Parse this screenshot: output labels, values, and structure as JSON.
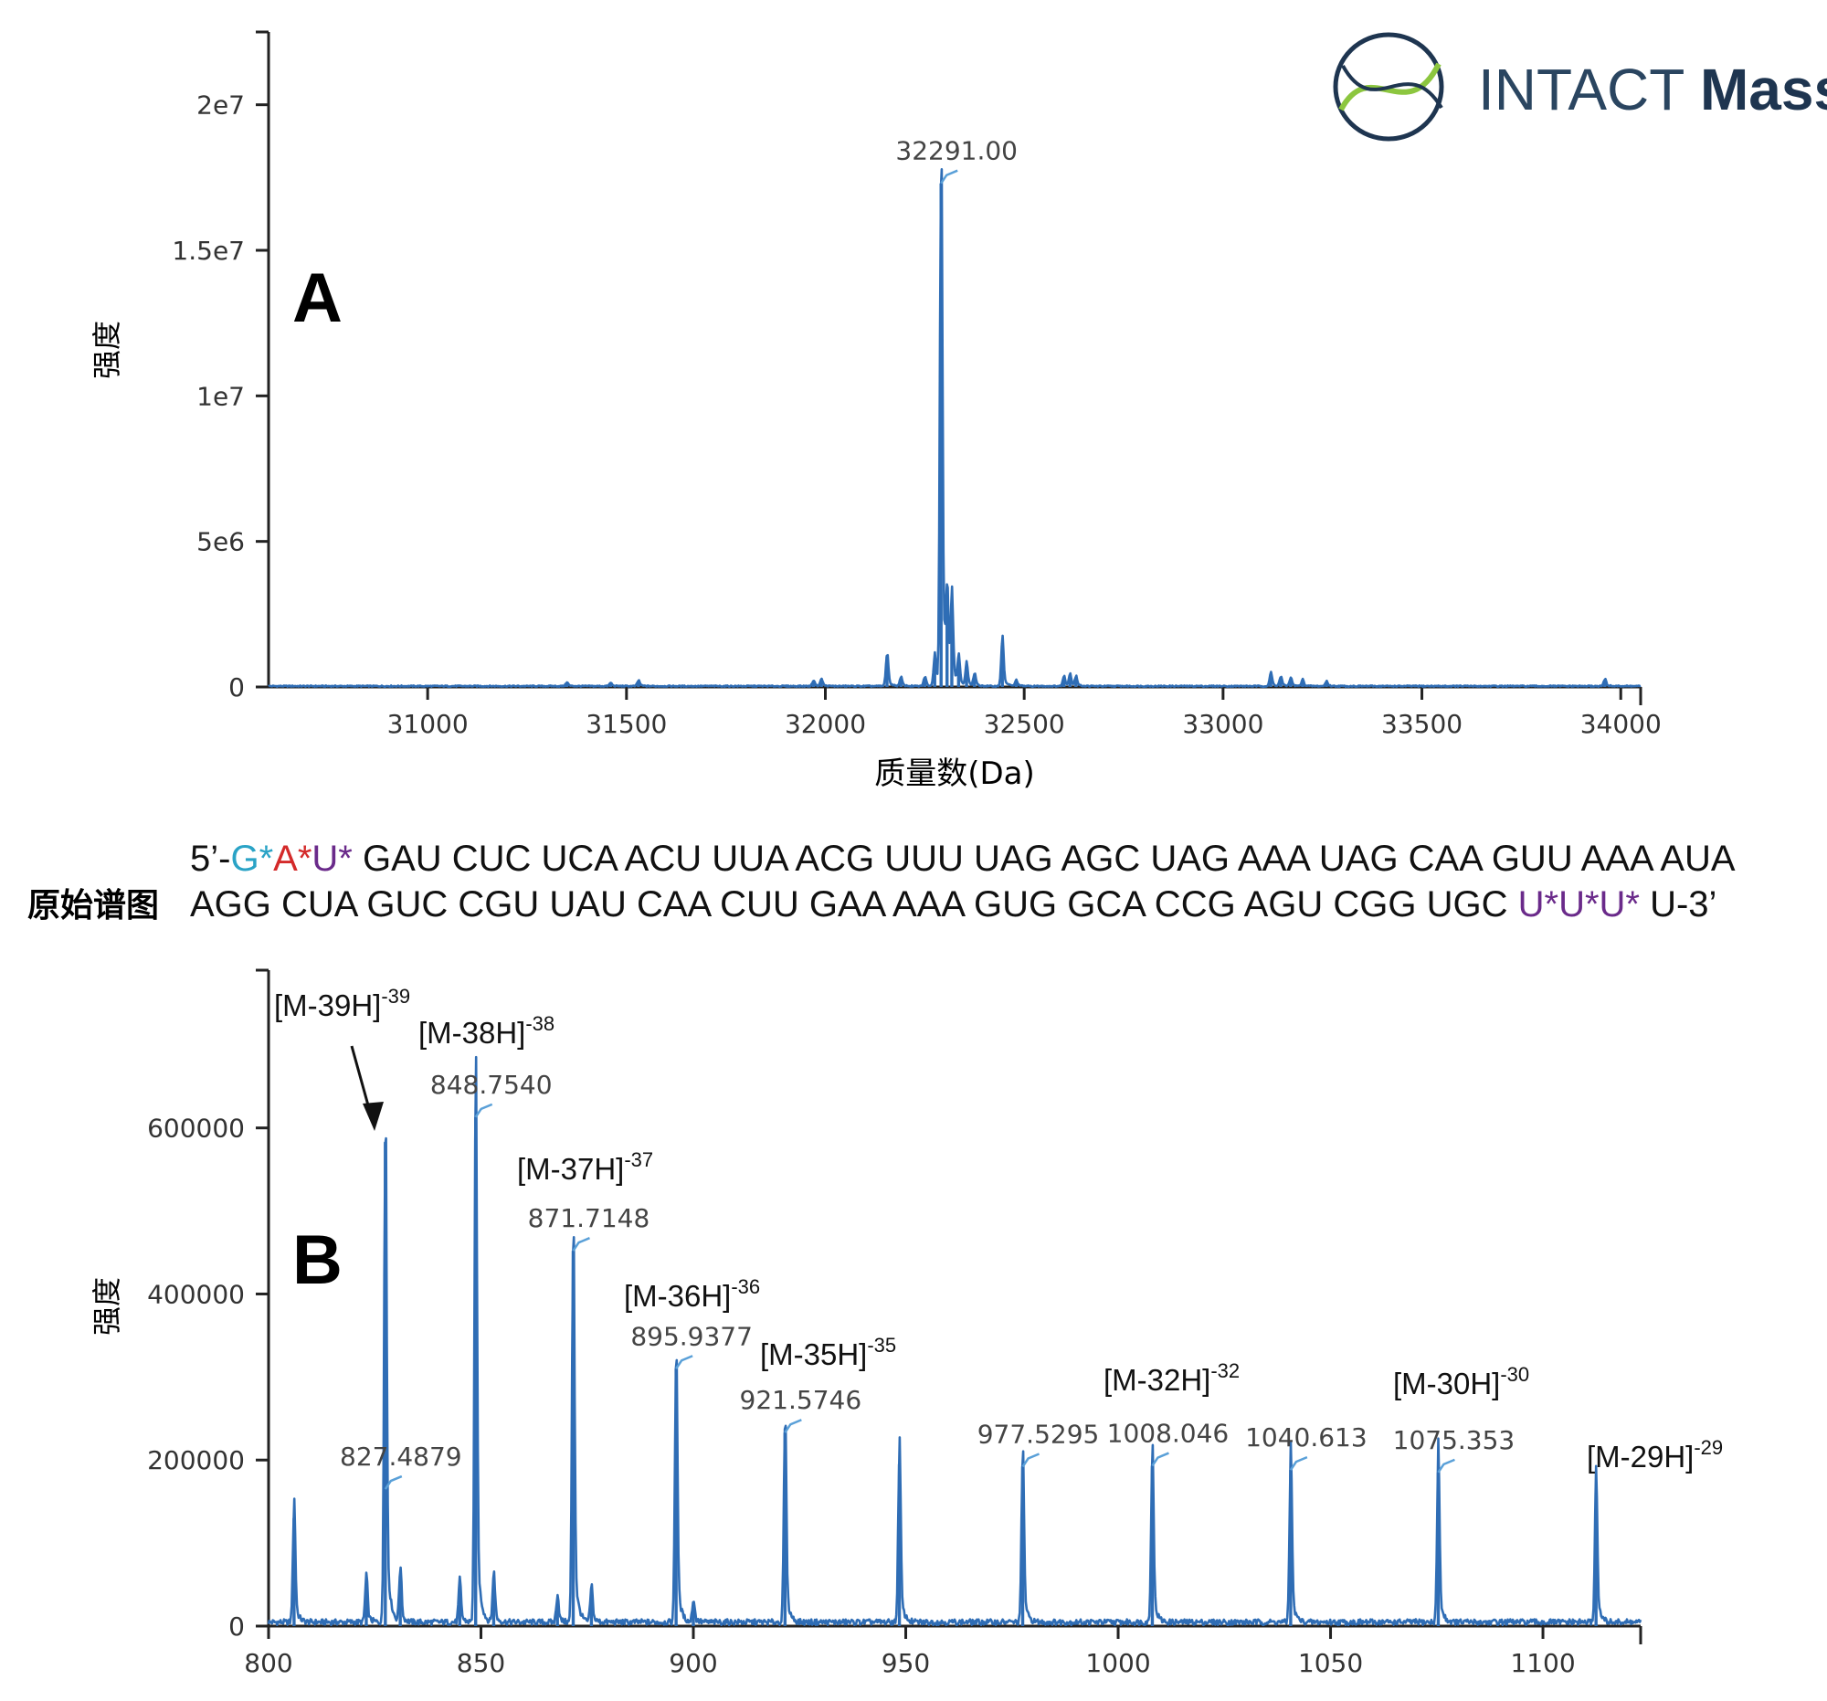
{
  "logo": {
    "text_light": "INTACT ",
    "text_bold": "Mass",
    "color": "#1e3550",
    "accent": "#8cc63f"
  },
  "colors": {
    "series": "#2f6db5",
    "axis": "#222222",
    "marker": "#5aa0d8",
    "g_cyan": "#2aa3c6",
    "a_red": "#d42a2a",
    "u_purple": "#6a2a8a"
  },
  "sequence": {
    "title": "原始谱图",
    "line1": [
      {
        "t": "5’-",
        "c": "default"
      },
      {
        "t": "G*",
        "c": "g_cyan"
      },
      {
        "t": "A*",
        "c": "a_red"
      },
      {
        "t": "U*",
        "c": "u_purple"
      },
      {
        "t": " GAU CUC UCA ACU UUA ACG UUU UAG AGC UAG AAA UAG CAA GUU AAA AUA",
        "c": "default"
      }
    ],
    "line2": [
      {
        "t": "AGG CUA GUC CGU UAU CAA CUU GAA AAA GUG GCA CCG AGU CGG UGC ",
        "c": "default"
      },
      {
        "t": "U*U*U*",
        "c": "u_purple"
      },
      {
        "t": " U-3’",
        "c": "default"
      }
    ]
  },
  "chart_data": [
    {
      "type": "line",
      "panel": "A",
      "xlabel": "质量数(Da)",
      "ylabel": "强度",
      "xlim": [
        30600,
        34050
      ],
      "ylim": [
        0,
        22500000
      ],
      "xticks": [
        31000,
        31500,
        32000,
        32500,
        33000,
        33500,
        34000
      ],
      "yticks": [
        {
          "v": 0,
          "label": "0"
        },
        {
          "v": 5000000,
          "label": "5e6"
        },
        {
          "v": 10000000,
          "label": "1e7"
        },
        {
          "v": 15000000,
          "label": "1.5e7"
        },
        {
          "v": 20000000,
          "label": "2e7"
        }
      ],
      "peaks": [
        {
          "x": 31350,
          "y": 120000
        },
        {
          "x": 31460,
          "y": 100000
        },
        {
          "x": 31530,
          "y": 180000
        },
        {
          "x": 31970,
          "y": 180000
        },
        {
          "x": 31990,
          "y": 220000
        },
        {
          "x": 32155,
          "y": 1050000
        },
        {
          "x": 32190,
          "y": 280000
        },
        {
          "x": 32250,
          "y": 300000
        },
        {
          "x": 32275,
          "y": 1000000
        },
        {
          "x": 32291,
          "y": 17300000
        },
        {
          "x": 32306,
          "y": 2800000
        },
        {
          "x": 32318,
          "y": 2700000
        },
        {
          "x": 32335,
          "y": 900000
        },
        {
          "x": 32355,
          "y": 700000
        },
        {
          "x": 32375,
          "y": 400000
        },
        {
          "x": 32445,
          "y": 1500000
        },
        {
          "x": 32480,
          "y": 180000
        },
        {
          "x": 32600,
          "y": 320000
        },
        {
          "x": 32615,
          "y": 380000
        },
        {
          "x": 32630,
          "y": 300000
        },
        {
          "x": 33120,
          "y": 420000
        },
        {
          "x": 33145,
          "y": 300000
        },
        {
          "x": 33170,
          "y": 260000
        },
        {
          "x": 33200,
          "y": 200000
        },
        {
          "x": 33260,
          "y": 150000
        },
        {
          "x": 33960,
          "y": 220000
        }
      ],
      "annotations": [
        {
          "x": 32291,
          "y": 17300000,
          "label": "32291.00"
        }
      ]
    },
    {
      "type": "line",
      "panel": "B",
      "ylabel": "强度",
      "xlim": [
        800,
        1123
      ],
      "ylim": [
        0,
        790000
      ],
      "xticks": [
        800,
        850,
        900,
        950,
        1000,
        1050,
        1100
      ],
      "yticks": [
        {
          "v": 0,
          "label": "0"
        },
        {
          "v": 200000,
          "label": "200000"
        },
        {
          "v": 400000,
          "label": "400000"
        },
        {
          "v": 600000,
          "label": "600000"
        }
      ],
      "peaks": [
        {
          "x": 806,
          "y": 130000
        },
        {
          "x": 823,
          "y": 50000
        },
        {
          "x": 827.4879,
          "y": 583000
        },
        {
          "x": 831,
          "y": 60000
        },
        {
          "x": 845,
          "y": 45000
        },
        {
          "x": 848.754,
          "y": 613000
        },
        {
          "x": 853,
          "y": 55000
        },
        {
          "x": 868,
          "y": 30000
        },
        {
          "x": 871.7148,
          "y": 452000
        },
        {
          "x": 876,
          "y": 40000
        },
        {
          "x": 895.9377,
          "y": 310000
        },
        {
          "x": 900,
          "y": 25000
        },
        {
          "x": 921.5746,
          "y": 233000
        },
        {
          "x": 948.5,
          "y": 195000
        },
        {
          "x": 977.5295,
          "y": 192000
        },
        {
          "x": 1008.046,
          "y": 193000
        },
        {
          "x": 1040.613,
          "y": 188000
        },
        {
          "x": 1075.353,
          "y": 185000
        },
        {
          "x": 1112.5,
          "y": 160000
        }
      ],
      "annotations": [
        {
          "x": 827.4879,
          "y": 165000,
          "label": "827.4879"
        },
        {
          "x": 848.754,
          "y": 613000,
          "label": "848.7540"
        },
        {
          "x": 871.7148,
          "y": 452000,
          "label": "871.7148"
        },
        {
          "x": 895.9377,
          "y": 310000,
          "label": "895.9377"
        },
        {
          "x": 921.5746,
          "y": 233000,
          "label": "921.5746"
        },
        {
          "x": 977.5295,
          "y": 192000,
          "label": "977.5295"
        },
        {
          "x": 1008.046,
          "y": 193000,
          "label": "1008.046"
        },
        {
          "x": 1040.613,
          "y": 188000,
          "label": "1040.613"
        },
        {
          "x": 1075.353,
          "y": 185000,
          "label": "1075.353"
        }
      ],
      "ions": [
        {
          "text": "[M-39H]",
          "charge": "-39"
        },
        {
          "text": "[M-38H]",
          "charge": "-38"
        },
        {
          "text": "[M-37H]",
          "charge": "-37"
        },
        {
          "text": "[M-36H]",
          "charge": "-36"
        },
        {
          "text": "[M-35H]",
          "charge": "-35"
        },
        {
          "text": "[M-32H]",
          "charge": "-32"
        },
        {
          "text": "[M-30H]",
          "charge": "-30"
        },
        {
          "text": "[M-29H]",
          "charge": "-29"
        }
      ]
    }
  ]
}
